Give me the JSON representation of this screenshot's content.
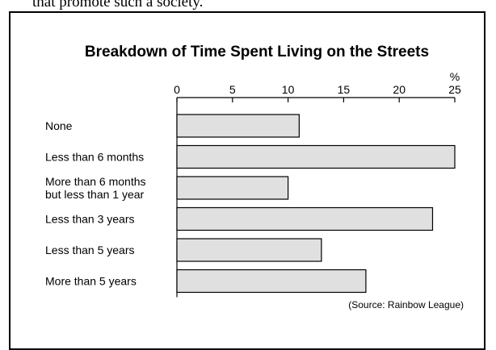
{
  "top_caption": "that promote such a society.",
  "chart_data": {
    "type": "bar",
    "orientation": "horizontal",
    "title": "Breakdown of Time Spent Living on the Streets",
    "unit": "%",
    "categories": [
      "None",
      "Less than 6 months",
      "More than 6 months but less than 1 year",
      "Less than 3 years",
      "Less than 5 years",
      "More than 5 years"
    ],
    "category_lines": [
      [
        "None"
      ],
      [
        "Less than 6 months"
      ],
      [
        "More than 6 months",
        "but less than 1 year"
      ],
      [
        "Less than 3 years"
      ],
      [
        "Less than 5 years"
      ],
      [
        "More than 5 years"
      ]
    ],
    "values": [
      11,
      25,
      10,
      23,
      13,
      17
    ],
    "xlim": [
      0,
      25
    ],
    "ticks": [
      0,
      5,
      10,
      15,
      20,
      25
    ],
    "grid": false,
    "source": "(Source: Rainbow League)",
    "colors": {
      "bar_fill": "#e0e0e0",
      "bar_stroke": "#000000"
    }
  }
}
